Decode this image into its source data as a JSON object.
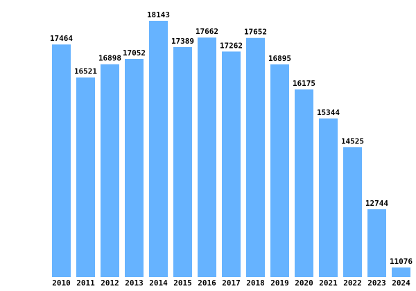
{
  "colors": {
    "bar": "#66b3ff",
    "text": "#000000",
    "background": "#ffffff"
  },
  "chart_data": {
    "type": "bar",
    "title": "",
    "xlabel": "",
    "ylabel": "",
    "grid": false,
    "legend": "none",
    "categories": [
      "2010",
      "2011",
      "2012",
      "2013",
      "2014",
      "2015",
      "2016",
      "2017",
      "2018",
      "2019",
      "2020",
      "2021",
      "2022",
      "2023",
      "2024"
    ],
    "values": [
      17464,
      16521,
      16898,
      17052,
      18143,
      17389,
      17662,
      17262,
      17652,
      16895,
      16175,
      15344,
      14525,
      12744,
      11076
    ],
    "value_labels": [
      "17464",
      "16521",
      "16898",
      "17052",
      "18143",
      "17389",
      "17662",
      "17262",
      "17652",
      "16895",
      "16175",
      "15344",
      "14525",
      "12744",
      "11076"
    ],
    "ylim": [
      10800,
      18143
    ]
  }
}
